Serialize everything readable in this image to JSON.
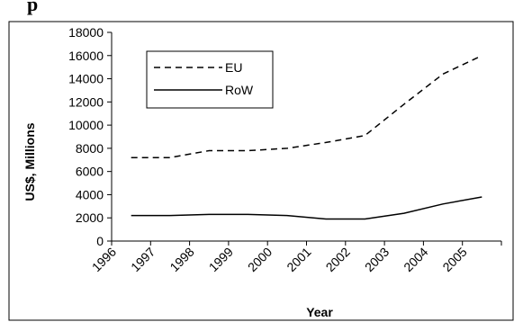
{
  "header_fragment": "p",
  "chart_data": {
    "type": "line",
    "categories": [
      "1996",
      "1997",
      "1998",
      "1999",
      "2000",
      "2001",
      "2002",
      "2003",
      "2004",
      "2005"
    ],
    "series": [
      {
        "name": "EU",
        "values": [
          7200,
          7200,
          7800,
          7800,
          8000,
          8500,
          9100,
          11800,
          14400,
          16000
        ],
        "style": "dashed",
        "color": "#000000"
      },
      {
        "name": "RoW",
        "values": [
          2200,
          2200,
          2300,
          2300,
          2200,
          1900,
          1900,
          2400,
          3200,
          3800
        ],
        "style": "solid",
        "color": "#000000"
      }
    ],
    "xlabel": "Year",
    "ylabel": "US$, Millions",
    "ylim": [
      0,
      18000
    ],
    "yticks": [
      "0",
      "2000",
      "4000",
      "6000",
      "8000",
      "10000",
      "12000",
      "14000",
      "16000",
      "18000"
    ],
    "grid": false,
    "legend": "top-left"
  }
}
